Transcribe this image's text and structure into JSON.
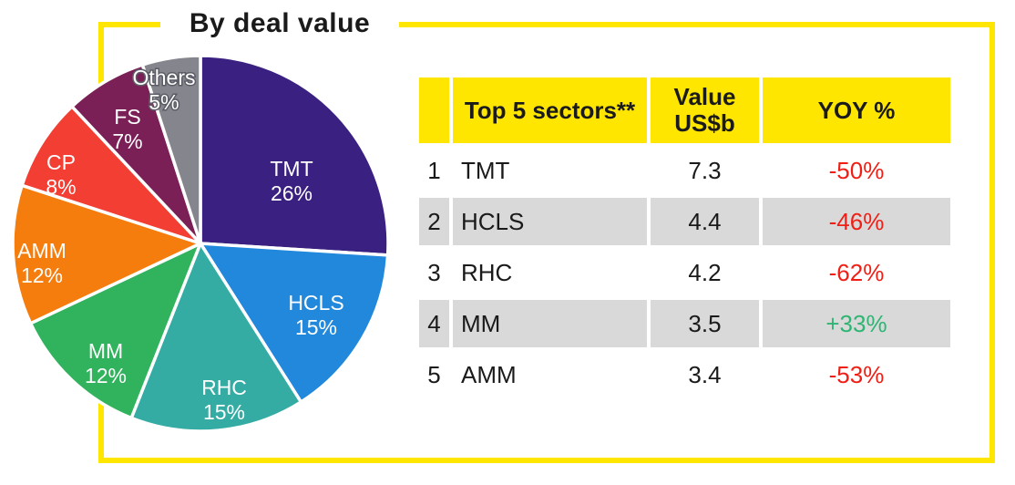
{
  "title": "By deal value",
  "theme": {
    "accent_yellow": "#FFE600",
    "alt_row_gray": "#D9D9D9",
    "ink": "#1A1A1A",
    "negative_color": "#F01E14",
    "positive_color": "#2EB573"
  },
  "chart_data": {
    "type": "pie",
    "title": "By deal value",
    "unit": "%",
    "start_angle_deg": 0,
    "direction": "clockwise",
    "legend_position": "in-slice-labels",
    "slices": [
      {
        "label": "TMT",
        "pct": 26,
        "color": "#3A2080",
        "label_pos": [
          310,
          136
        ]
      },
      {
        "label": "HCLS",
        "pct": 15,
        "color": "#2288DC",
        "label_pos": [
          337,
          283
        ]
      },
      {
        "label": "RHC",
        "pct": 15,
        "color": "#34ACA4",
        "label_pos": [
          236,
          376
        ]
      },
      {
        "label": "MM",
        "pct": 12,
        "color": "#30B35C",
        "label_pos": [
          106,
          336
        ]
      },
      {
        "label": "AMM",
        "pct": 12,
        "color": "#F57D0D",
        "label_pos": [
          36,
          226
        ]
      },
      {
        "label": "CP",
        "pct": 8,
        "color": "#F23E33",
        "label_pos": [
          57,
          129
        ]
      },
      {
        "label": "FS",
        "pct": 7,
        "color": "#7B2057",
        "label_pos": [
          130,
          79
        ]
      },
      {
        "label": "Others",
        "pct": 5,
        "color": "#85858D",
        "label_pos": [
          170,
          36
        ],
        "outline": true
      }
    ]
  },
  "table": {
    "header": {
      "rank": "",
      "sector": "Top 5 sectors**",
      "value": "Value\nUS$b",
      "yoy": "YOY %"
    },
    "rows": [
      {
        "rank": "1",
        "sector": "TMT",
        "value": "7.3",
        "yoy": "-50%",
        "trend": "down"
      },
      {
        "rank": "2",
        "sector": "HCLS",
        "value": "4.4",
        "yoy": "-46%",
        "trend": "down"
      },
      {
        "rank": "3",
        "sector": "RHC",
        "value": "4.2",
        "yoy": "-62%",
        "trend": "down"
      },
      {
        "rank": "4",
        "sector": "MM",
        "value": "3.5",
        "yoy": "+33%",
        "trend": "up"
      },
      {
        "rank": "5",
        "sector": "AMM",
        "value": "3.4",
        "yoy": "-53%",
        "trend": "down"
      }
    ]
  }
}
